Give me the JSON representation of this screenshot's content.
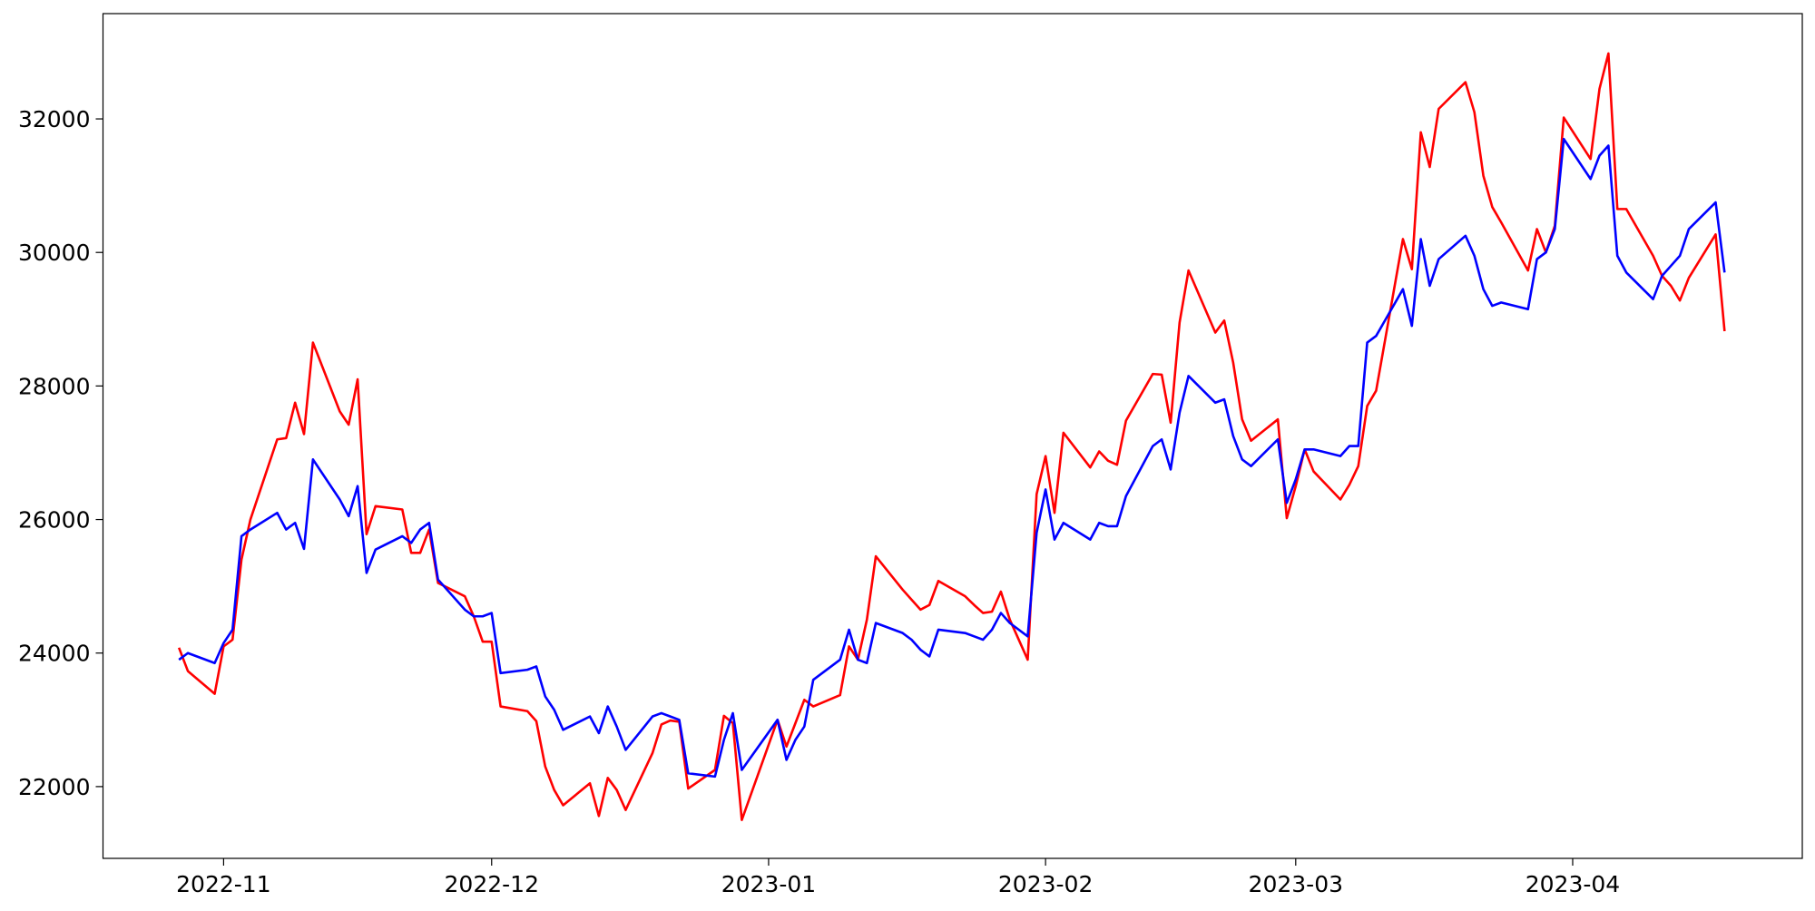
{
  "chart_data": {
    "type": "line",
    "x": [
      19292,
      19293,
      19296,
      19297,
      19298,
      19299,
      19300,
      19303,
      19304,
      19305,
      19306,
      19307,
      19310,
      19311,
      19312,
      19313,
      19314,
      19317,
      19318,
      19319,
      19320,
      19321,
      19324,
      19325,
      19326,
      19327,
      19328,
      19331,
      19332,
      19333,
      19334,
      19335,
      19338,
      19339,
      19340,
      19341,
      19342,
      19345,
      19346,
      19347,
      19348,
      19349,
      19352,
      19353,
      19354,
      19355,
      19359,
      19360,
      19361,
      19362,
      19363,
      19366,
      19367,
      19368,
      19369,
      19370,
      19373,
      19374,
      19375,
      19376,
      19377,
      19380,
      19381,
      19382,
      19383,
      19384,
      19385,
      19387,
      19388,
      19389,
      19390,
      19391,
      19394,
      19395,
      19396,
      19397,
      19398,
      19401,
      19402,
      19403,
      19404,
      19405,
      19408,
      19409,
      19410,
      19411,
      19412,
      19415,
      19416,
      19417,
      19418,
      19419,
      19422,
      19423,
      19424,
      19425,
      19426,
      19429,
      19430,
      19431,
      19432,
      19433,
      19436,
      19437,
      19438,
      19439,
      19440,
      19443,
      19444,
      19445,
      19446,
      19447,
      19450,
      19451,
      19452,
      19453,
      19454,
      19457,
      19458,
      19459,
      19460,
      19461,
      19464,
      19465
    ],
    "series": [
      {
        "color": "#ff0000",
        "values": [
          24080,
          23730,
          23390,
          24100,
          24200,
          25400,
          26000,
          27200,
          27220,
          27750,
          27280,
          28650,
          27620,
          27420,
          28100,
          25780,
          26200,
          26150,
          25500,
          25500,
          25850,
          25050,
          24850,
          24550,
          24170,
          24170,
          23200,
          23130,
          22980,
          22300,
          21950,
          21720,
          22050,
          21560,
          22130,
          21950,
          21650,
          22500,
          22930,
          22990,
          22970,
          21970,
          22250,
          23060,
          22950,
          21500,
          23000,
          22600,
          22950,
          23300,
          23200,
          23370,
          24100,
          23900,
          24500,
          25450,
          24950,
          24800,
          24650,
          24720,
          25080,
          24850,
          24720,
          24600,
          24620,
          24920,
          24500,
          23900,
          26380,
          26950,
          26100,
          27300,
          26780,
          27020,
          26880,
          26820,
          27480,
          28180,
          28170,
          27450,
          28950,
          29730,
          28800,
          28980,
          28350,
          27500,
          27180,
          27500,
          26020,
          26500,
          27050,
          26720,
          26300,
          26520,
          26800,
          27700,
          27930,
          30200,
          29750,
          31800,
          31280,
          32150,
          32550,
          32100,
          31150,
          30680,
          30450,
          29730,
          30350,
          30000,
          30400,
          32020,
          31400,
          32450,
          32980,
          30650,
          30650,
          29950,
          29650,
          29500,
          29280,
          29620,
          30270,
          28820
        ]
      },
      {
        "color": "#0000ff",
        "values": [
          23900,
          24000,
          23850,
          24150,
          24350,
          25750,
          25850,
          26100,
          25850,
          25950,
          25560,
          26900,
          26300,
          26050,
          26500,
          25200,
          25550,
          25750,
          25650,
          25850,
          25950,
          25100,
          24650,
          24550,
          24550,
          24600,
          23700,
          23750,
          23800,
          23350,
          23150,
          22850,
          23050,
          22800,
          23200,
          22900,
          22550,
          23050,
          23100,
          23050,
          23000,
          22200,
          22150,
          22700,
          23100,
          22250,
          23000,
          22400,
          22700,
          22900,
          23600,
          23900,
          24350,
          23900,
          23850,
          24450,
          24300,
          24200,
          24050,
          23950,
          24350,
          24300,
          24250,
          24200,
          24350,
          24600,
          24450,
          24250,
          25800,
          26450,
          25700,
          25950,
          25700,
          25950,
          25900,
          25900,
          26350,
          27100,
          27200,
          26750,
          27600,
          28150,
          27750,
          27800,
          27250,
          26900,
          26800,
          27200,
          26250,
          26600,
          27050,
          27050,
          26950,
          27100,
          27100,
          28650,
          28750,
          29450,
          28900,
          30200,
          29500,
          29900,
          30250,
          29950,
          29450,
          29200,
          29250,
          29150,
          29900,
          30000,
          30350,
          31700,
          31100,
          31450,
          31600,
          29950,
          29700,
          29300,
          29650,
          29800,
          29950,
          30350,
          30750,
          29700
        ]
      }
    ],
    "xlim": [
      19283.5,
      19473.7
    ],
    "xticks": [
      {
        "value": 19297,
        "label": "2022-11"
      },
      {
        "value": 19327,
        "label": "2022-12"
      },
      {
        "value": 19358,
        "label": "2023-01"
      },
      {
        "value": 19389,
        "label": "2023-02"
      },
      {
        "value": 19417,
        "label": "2023-03"
      },
      {
        "value": 19448,
        "label": "2023-04"
      }
    ],
    "ylim": [
      20925,
      33577
    ],
    "yticks": [
      22000,
      24000,
      26000,
      28000,
      30000,
      32000
    ],
    "grid": false
  }
}
